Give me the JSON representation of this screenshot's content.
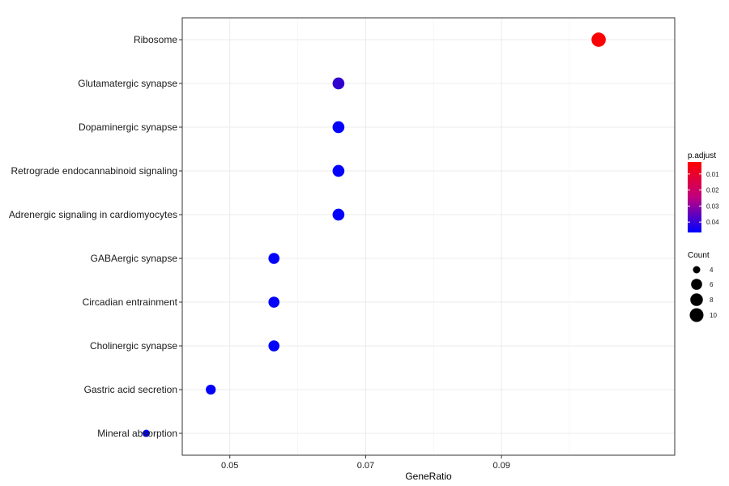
{
  "chart_data": {
    "type": "scatter",
    "xlabel": "GeneRatio",
    "ylabel": "",
    "title": "",
    "xlim": [
      0.043,
      0.1155
    ],
    "xticks": [
      0.05,
      0.07,
      0.09
    ],
    "xtick_labels": [
      "0.05",
      "0.07",
      "0.09"
    ],
    "grid": true,
    "categories": [
      "Ribosome",
      "Glutamatergic synapse",
      "Dopaminergic synapse",
      "Retrograde endocannabinoid signaling",
      "Adrenergic signaling in cardiomyocytes",
      "GABAergic synapse",
      "Circadian entrainment",
      "Cholinergic synapse",
      "Gastric acid secretion",
      "Mineral absorption"
    ],
    "points": [
      {
        "term": "Ribosome",
        "gene_ratio": 0.1043,
        "count": 11,
        "p_adjust": 0.003
      },
      {
        "term": "Glutamatergic synapse",
        "gene_ratio": 0.066,
        "count": 7,
        "p_adjust": 0.038
      },
      {
        "term": "Dopaminergic synapse",
        "gene_ratio": 0.066,
        "count": 7,
        "p_adjust": 0.046
      },
      {
        "term": "Retrograde endocannabinoid signaling",
        "gene_ratio": 0.066,
        "count": 7,
        "p_adjust": 0.046
      },
      {
        "term": "Adrenergic signaling in cardiomyocytes",
        "gene_ratio": 0.066,
        "count": 7,
        "p_adjust": 0.046
      },
      {
        "term": "GABAergic synapse",
        "gene_ratio": 0.0565,
        "count": 6,
        "p_adjust": 0.046
      },
      {
        "term": "Circadian entrainment",
        "gene_ratio": 0.0565,
        "count": 6,
        "p_adjust": 0.046
      },
      {
        "term": "Cholinergic synapse",
        "gene_ratio": 0.0565,
        "count": 6,
        "p_adjust": 0.046
      },
      {
        "term": "Gastric acid secretion",
        "gene_ratio": 0.0472,
        "count": 5,
        "p_adjust": 0.046
      },
      {
        "term": "Mineral absorption",
        "gene_ratio": 0.0377,
        "count": 4,
        "p_adjust": 0.046
      }
    ],
    "color_legend": {
      "title": "p.adjust",
      "low_color": "#FF0000",
      "high_color": "#0000FF",
      "range": [
        0.0025,
        0.0465
      ],
      "ticks": [
        0.01,
        0.02,
        0.03,
        0.04
      ],
      "tick_labels": [
        "0.01",
        "0.02",
        "0.03",
        "0.04"
      ]
    },
    "size_legend": {
      "title": "Count",
      "values": [
        4,
        6,
        8,
        10
      ],
      "labels": [
        "4",
        "6",
        "8",
        "10"
      ]
    }
  }
}
